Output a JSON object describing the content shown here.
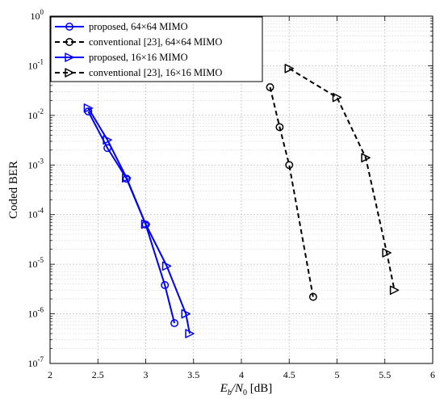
{
  "chart_data": {
    "type": "line",
    "title": "",
    "xlabel": "E_b/N_0 [dB]",
    "xlabel_parts": {
      "main": "E",
      "sub1": "b",
      "slash": "/N",
      "sub2": "0",
      "unit": " [dB]"
    },
    "ylabel": "Coded BER",
    "xlim": [
      2,
      6
    ],
    "ylim_exp": [
      -7,
      0
    ],
    "yscale": "log",
    "grid": true,
    "legend_position": "top-left",
    "x_ticks": [
      "2",
      "2.5",
      "3",
      "3.5",
      "4",
      "4.5",
      "5",
      "5.5",
      "6"
    ],
    "x_tick_values": [
      2,
      2.5,
      3,
      3.5,
      4,
      4.5,
      5,
      5.5,
      6
    ],
    "y_ticks": [
      {
        "exp": -7,
        "base": "10",
        "sup": "-7"
      },
      {
        "exp": -6,
        "base": "10",
        "sup": "-6"
      },
      {
        "exp": -5,
        "base": "10",
        "sup": "-5"
      },
      {
        "exp": -4,
        "base": "10",
        "sup": "-4"
      },
      {
        "exp": -3,
        "base": "10",
        "sup": "-3"
      },
      {
        "exp": -2,
        "base": "10",
        "sup": "-2"
      },
      {
        "exp": -1,
        "base": "10",
        "sup": "-1"
      },
      {
        "exp": 0,
        "base": "10",
        "sup": "0"
      }
    ],
    "series": [
      {
        "name": "proposed, 64×64 MIMO",
        "color": "#0000ff",
        "dash": "solid",
        "marker": "circle",
        "x": [
          2.4,
          2.6,
          2.8,
          3.0,
          3.2,
          3.3
        ],
        "y": [
          0.012,
          0.0022,
          0.00053,
          6.3e-05,
          3.8e-06,
          6.5e-07
        ]
      },
      {
        "name": "conventional [23], 64×64 MIMO",
        "color": "#000000",
        "dash": "dashed",
        "marker": "circle",
        "x": [
          4.3,
          4.4,
          4.5,
          4.75
        ],
        "y": [
          0.037,
          0.0058,
          0.001,
          2.2e-06
        ]
      },
      {
        "name": "proposed, 16×16 MIMO",
        "color": "#0000ff",
        "dash": "solid",
        "marker": "triangle-right",
        "x": [
          2.4,
          2.6,
          2.8,
          3.0,
          3.22,
          3.42,
          3.46
        ],
        "y": [
          0.014,
          0.0032,
          0.00055,
          6.4e-05,
          9.2e-06,
          1e-06,
          4e-07
        ]
      },
      {
        "name": "conventional [23], 16×16 MIMO",
        "color": "#000000",
        "dash": "dashed",
        "marker": "triangle-right",
        "x": [
          4.5,
          5.0,
          5.3,
          5.52,
          5.6
        ],
        "y": [
          0.088,
          0.023,
          0.0014,
          1.7e-05,
          3e-06
        ]
      }
    ]
  }
}
